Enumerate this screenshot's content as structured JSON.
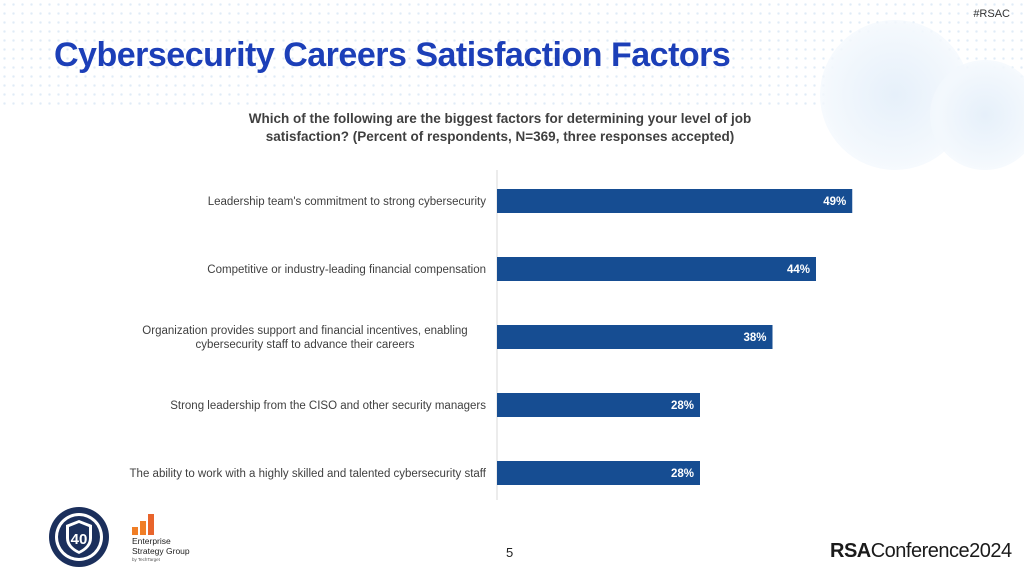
{
  "header": {
    "hashtag": "#RSAC",
    "title": "Cybersecurity Careers Satisfaction Factors"
  },
  "chart_data": {
    "type": "bar",
    "orientation": "horizontal",
    "title": "Which of the following are the biggest factors for determining your level of job satisfaction? (Percent of respondents, N=369, three responses accepted)",
    "categories": [
      "Leadership team's commitment to strong cybersecurity",
      "Competitive or industry-leading financial compensation",
      "Organization provides support and financial incentives, enabling cybersecurity staff to advance their careers",
      "Strong leadership from the CISO and other security managers",
      "The ability to work with a highly skilled and talented cybersecurity staff"
    ],
    "category_lines": [
      [
        "Leadership team's commitment to strong cybersecurity"
      ],
      [
        "Competitive or industry-leading financial compensation"
      ],
      [
        "Organization provides support and financial incentives, enabling",
        "cybersecurity staff to advance their careers"
      ],
      [
        "Strong leadership from the CISO and other security managers"
      ],
      [
        "The ability to work with a highly skilled and talented cybersecurity staff"
      ]
    ],
    "values": [
      49,
      44,
      38,
      28,
      28
    ],
    "value_labels": [
      "49%",
      "44%",
      "38%",
      "28%",
      "28%"
    ],
    "unit": "%",
    "xlim": [
      0,
      60
    ],
    "grid": false,
    "bar_color": "#164d92",
    "label_color": "#ffffff"
  },
  "footer": {
    "page_number": "5",
    "esg_name_line1": "Enterprise",
    "esg_name_line2": "Strategy Group",
    "esg_tagline": "by TechTarget",
    "isc2_badge_number": "40",
    "rsa_brand": "RSA",
    "rsa_word": "Conference",
    "rsa_year": "2024"
  },
  "colors": {
    "title": "#1c3fb8",
    "bar": "#164d92",
    "esg_orange": "#f07e26",
    "isc2_navy": "#1b2f5c"
  }
}
